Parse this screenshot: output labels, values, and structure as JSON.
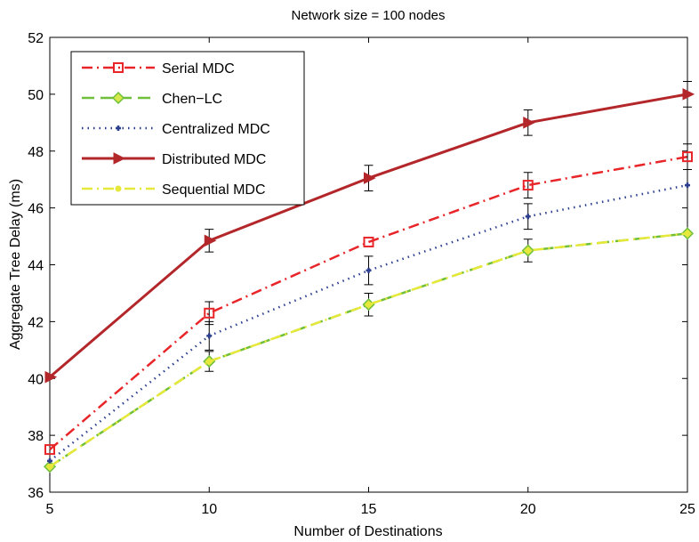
{
  "chart_data": {
    "type": "line",
    "title": "Network size = 100 nodes",
    "xlabel": "Number of Destinations",
    "ylabel": "Aggregate Tree Delay (ms)",
    "x": [
      5,
      10,
      15,
      20,
      25
    ],
    "xlim": [
      5,
      25
    ],
    "ylim": [
      36,
      52
    ],
    "xticks": [
      "5",
      "10",
      "15",
      "20",
      "25"
    ],
    "yticks": [
      "36",
      "38",
      "40",
      "42",
      "44",
      "46",
      "48",
      "50",
      "52"
    ],
    "grid": false,
    "legend_position": "top-left",
    "series": [
      {
        "name": "Serial MDC",
        "values": [
          37.5,
          42.3,
          44.8,
          46.8,
          47.8
        ],
        "errors": [
          0.0,
          0.4,
          0.0,
          0.45,
          0.45
        ],
        "color": "#e8262a",
        "dash": "dashdot",
        "marker": "square"
      },
      {
        "name": "Chen−LC",
        "values": [
          36.9,
          40.6,
          42.6,
          44.5,
          45.1
        ],
        "errors": [
          0.0,
          0.35,
          0.4,
          0.4,
          0.0
        ],
        "color": "#6fbf3a",
        "dash": "dashed",
        "marker": "diamond"
      },
      {
        "name": "Centralized MDC",
        "values": [
          37.1,
          41.5,
          43.8,
          45.7,
          46.8
        ],
        "errors": [
          0.0,
          0.5,
          0.5,
          0.45,
          0.0
        ],
        "color": "#2c3f8f",
        "dash": "dotted",
        "marker": "plus"
      },
      {
        "name": "Distributed MDC",
        "values": [
          40.05,
          44.85,
          47.05,
          49.0,
          50.0
        ],
        "errors": [
          0.0,
          0.4,
          0.45,
          0.45,
          0.45
        ],
        "color": "#b3262a",
        "dash": "solid",
        "marker": "triangle-right"
      },
      {
        "name": "Sequential MDC",
        "values": [
          36.9,
          40.6,
          42.6,
          44.5,
          45.1
        ],
        "errors": [
          0.0,
          0.0,
          0.0,
          0.0,
          0.0
        ],
        "color": "#e6e83a",
        "dash": "dashdot",
        "marker": "circle"
      }
    ]
  }
}
